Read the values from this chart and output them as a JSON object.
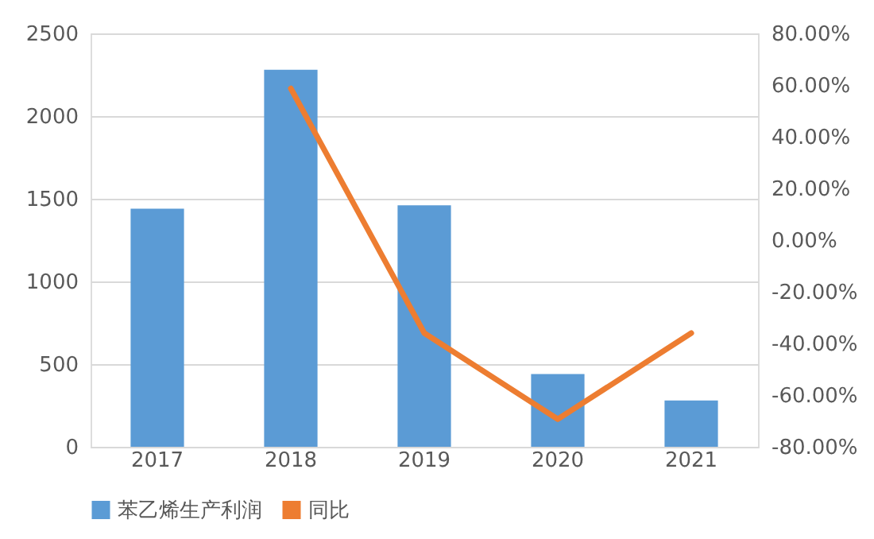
{
  "chart_data": {
    "type": "bar",
    "categories": [
      "2017",
      "2018",
      "2019",
      "2020",
      "2021"
    ],
    "series": [
      {
        "name": "苯乙烯生产利润",
        "color": "#5b9bd5",
        "values": [
          1440,
          2280,
          1460,
          440,
          280
        ]
      },
      {
        "name": "同比",
        "type": "line",
        "axis": "y2",
        "color": "#ed7d31",
        "values": [
          null,
          58.7,
          -36,
          -69.3,
          -36
        ]
      }
    ],
    "ylim": [
      0,
      2500
    ],
    "yticks": [
      0,
      500,
      1000,
      1500,
      2000,
      2500
    ],
    "y2lim": [
      -80,
      80
    ],
    "y2ticks": [
      {
        "value": -80,
        "label": "-80.00%"
      },
      {
        "value": -60,
        "label": "-60.00%"
      },
      {
        "value": -40,
        "label": "-40.00%"
      },
      {
        "value": -20,
        "label": "-20.00%"
      },
      {
        "value": 0,
        "label": "0.00%"
      },
      {
        "value": 20,
        "label": "20.00%"
      },
      {
        "value": 40,
        "label": "40.00%"
      },
      {
        "value": 60,
        "label": "60.00%"
      },
      {
        "value": 80,
        "label": "80.00%"
      }
    ],
    "grid": "y",
    "legend": "bottom",
    "marker": "none",
    "line_style": "solid"
  }
}
